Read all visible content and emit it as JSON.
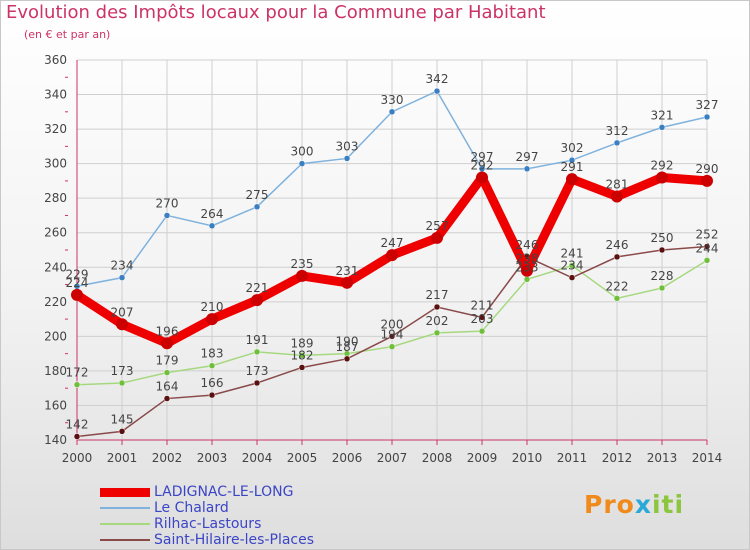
{
  "colors": {
    "title": "#cc3366",
    "axis": "#cc3366",
    "grid": "#cfcfcf",
    "label": "#444444",
    "legend_text": "#3b45c6"
  },
  "chart_data": {
    "type": "line",
    "title": "Evolution des Impôts locaux pour la Commune par Habitant",
    "subtitle": "(en € et par an)",
    "xlabel": "",
    "ylabel": "",
    "ylim": [
      140,
      360
    ],
    "yticks": [
      140,
      160,
      180,
      200,
      220,
      240,
      260,
      280,
      300,
      320,
      340,
      360
    ],
    "grid": true,
    "legend": "bottom-left",
    "x": [
      "2000",
      "2001",
      "2002",
      "2003",
      "2004",
      "2005",
      "2006",
      "2007",
      "2008",
      "2009",
      "2010",
      "2011",
      "2012",
      "2013",
      "2014"
    ],
    "series": [
      {
        "name": "LADIGNAC-LE-LONG",
        "color": "#ee0000",
        "marker": "#cc0000",
        "thick": true,
        "values": [
          224,
          207,
          196,
          210,
          221,
          235,
          231,
          247,
          257,
          292,
          238,
          291,
          281,
          292,
          290
        ]
      },
      {
        "name": "Le Chalard",
        "color": "#7fb2dd",
        "marker": "#3a7fc2",
        "thick": false,
        "values": [
          229,
          234,
          270,
          264,
          275,
          300,
          303,
          330,
          342,
          297,
          297,
          302,
          312,
          321,
          327
        ]
      },
      {
        "name": "Rilhac-Lastours",
        "color": "#a6d880",
        "marker": "#6fbf3c",
        "thick": false,
        "values": [
          172,
          173,
          179,
          183,
          191,
          189,
          190,
          194,
          202,
          203,
          233,
          241,
          222,
          228,
          244
        ]
      },
      {
        "name": "Saint-Hilaire-les-Places",
        "color": "#8a4a4a",
        "marker": "#5a1010",
        "thick": false,
        "values": [
          142,
          145,
          164,
          166,
          173,
          182,
          187,
          200,
          217,
          211,
          246,
          234,
          246,
          250,
          252
        ]
      }
    ]
  },
  "brand": {
    "p1": "Pro",
    "p2": "x",
    "p3": "iti"
  }
}
